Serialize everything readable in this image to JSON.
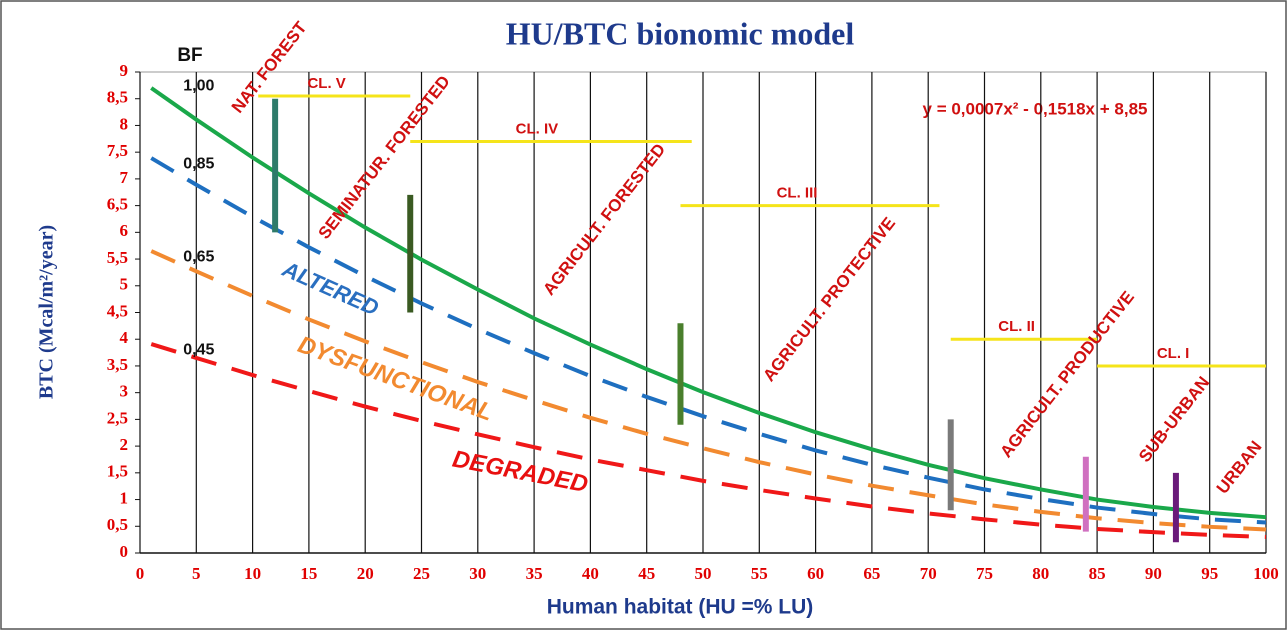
{
  "chart_data": {
    "type": "line",
    "title": "HU/BTC bionomic model",
    "x_label": "Human habitat (HU =% LU)",
    "y_label": "BTC (Mcal/m²/year)",
    "bf_label": "BF",
    "equation": "y = 0,0007x² - 0,1518x + 8,85",
    "xlim": [
      0,
      100
    ],
    "xticks": [
      0,
      5,
      10,
      15,
      20,
      25,
      30,
      35,
      40,
      45,
      50,
      55,
      60,
      65,
      70,
      75,
      80,
      85,
      90,
      95,
      100
    ],
    "ylim": [
      0,
      9
    ],
    "yticks": [
      0,
      {
        "value": 0.5,
        "label": "0,5"
      },
      1,
      {
        "value": 1.5,
        "label": "1,5"
      },
      2,
      {
        "value": 2.5,
        "label": "2,5"
      },
      3,
      {
        "value": 3.5,
        "label": "3,5"
      },
      4,
      {
        "value": 4.5,
        "label": "4,5"
      },
      5,
      {
        "value": 5.5,
        "label": "5,5"
      },
      6,
      {
        "value": 6.5,
        "label": "6,5"
      },
      7,
      {
        "value": 7.5,
        "label": "7,5"
      },
      8,
      {
        "value": 8.5,
        "label": "8,5"
      },
      9
    ],
    "grid": true,
    "x": [
      1,
      5,
      10,
      15,
      20,
      25,
      30,
      35,
      40,
      45,
      50,
      55,
      60,
      65,
      70,
      75,
      80,
      85,
      90,
      95,
      100
    ],
    "series": [
      {
        "name": "1,00",
        "color": "#1aa84a",
        "dashed": false,
        "values": [
          8.7,
          8.11,
          7.4,
          6.73,
          6.09,
          5.49,
          4.93,
          4.39,
          3.9,
          3.44,
          3.01,
          2.62,
          2.26,
          1.94,
          1.65,
          1.4,
          1.19,
          1.0,
          0.86,
          0.75,
          0.67
        ]
      },
      {
        "name": "0,85",
        "color": "#1e6fc0",
        "dashed": true,
        "values": [
          7.39,
          6.89,
          6.29,
          5.72,
          5.18,
          4.67,
          4.19,
          3.74,
          3.31,
          2.92,
          2.56,
          2.23,
          1.92,
          1.65,
          1.41,
          1.19,
          1.01,
          0.85,
          0.73,
          0.63,
          0.57
        ]
      },
      {
        "name": "0,65",
        "color": "#f28a30",
        "dashed": true,
        "values": [
          5.65,
          5.27,
          4.81,
          4.37,
          3.96,
          3.57,
          3.2,
          2.86,
          2.53,
          2.23,
          1.96,
          1.7,
          1.47,
          1.26,
          1.08,
          0.91,
          0.77,
          0.65,
          0.56,
          0.49,
          0.44
        ]
      },
      {
        "name": "0,45",
        "color": "#f01818",
        "dashed": true,
        "values": [
          3.91,
          3.65,
          3.33,
          3.03,
          2.74,
          2.47,
          2.22,
          1.98,
          1.75,
          1.55,
          1.35,
          1.18,
          1.02,
          0.87,
          0.74,
          0.63,
          0.53,
          0.45,
          0.39,
          0.34,
          0.3
        ]
      }
    ],
    "curve_labels": [
      {
        "text": "ALTERED",
        "color": "#2a6fc0"
      },
      {
        "text": "DYSFUNCTIONAL",
        "color": "#f28a30"
      },
      {
        "text": "DEGRADED",
        "color": "#e81010"
      }
    ],
    "units": [
      "NAT. FOREST",
      "SEMINATUR. FORESTED",
      "AGRICULT. FORESTED",
      "AGRICULT. PROTECTIVE",
      "AGRICULT. PRODUCTIVE",
      "SUB-URBAN",
      "URBAN"
    ],
    "ranges": [
      {
        "x": 12,
        "low": 6.0,
        "high": 8.5,
        "color": "#2e7b6a"
      },
      {
        "x": 24,
        "low": 4.5,
        "high": 6.7,
        "color": "#3a5a22"
      },
      {
        "x": 48,
        "low": 2.4,
        "high": 4.3,
        "color": "#4a7f2c"
      },
      {
        "x": 72,
        "low": 0.8,
        "high": 2.5,
        "color": "#7a7a7a"
      },
      {
        "x": 84,
        "low": 0.4,
        "high": 1.8,
        "color": "#d070c0"
      },
      {
        "x": 92,
        "low": 0.2,
        "high": 1.5,
        "color": "#6a1a7a"
      }
    ],
    "classes": [
      {
        "name": "CL. V",
        "x0": 10.5,
        "x1": 24,
        "y": 8.55
      },
      {
        "name": "CL. IV",
        "x0": 24,
        "x1": 49,
        "y": 7.7
      },
      {
        "name": "CL. III",
        "x0": 48,
        "x1": 71,
        "y": 6.5
      },
      {
        "name": "CL. II",
        "x0": 72,
        "x1": 85,
        "y": 4.0
      },
      {
        "name": "CL. I",
        "x0": 85,
        "x1": 100,
        "y": 3.5
      }
    ]
  }
}
